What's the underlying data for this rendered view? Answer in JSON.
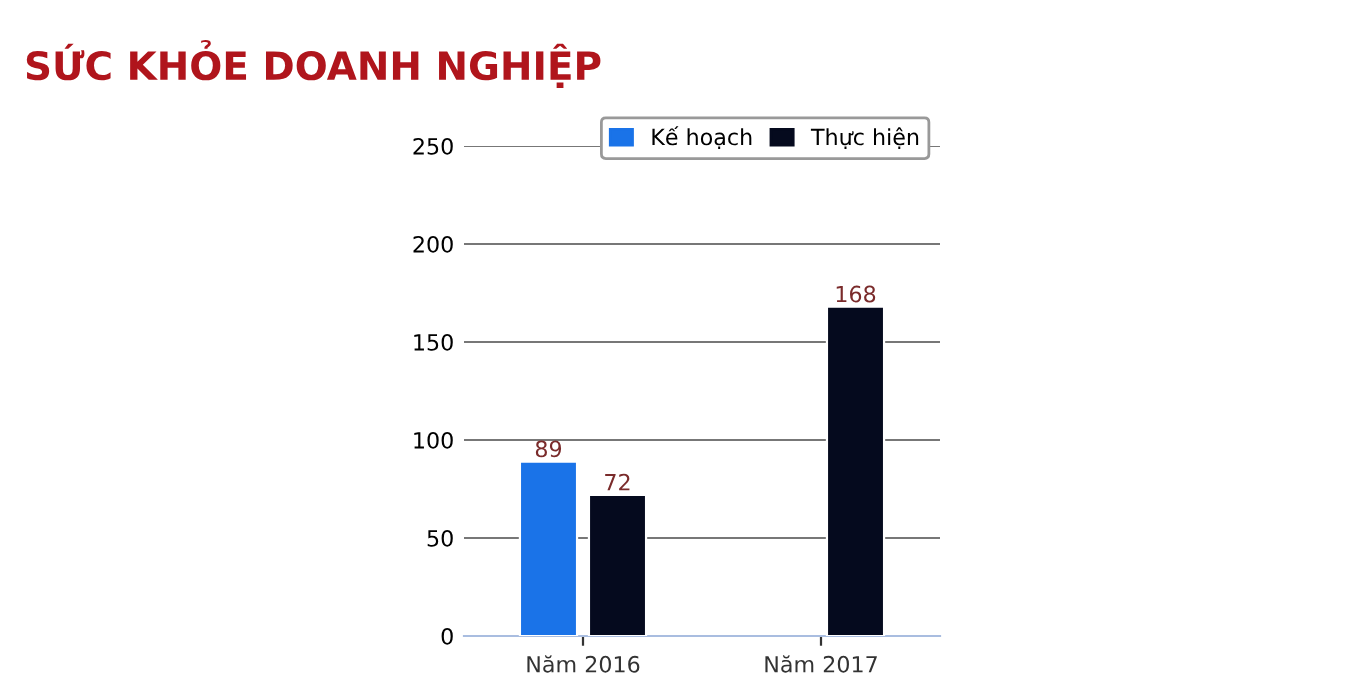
{
  "chart_data": {
    "type": "bar",
    "title": "SỨC KHỎE DOANH NGHIỆP",
    "categories": [
      "Năm 2016",
      "Năm 2017"
    ],
    "series": [
      {
        "name": "Kế hoạch",
        "color": "#1a73e8",
        "values": [
          89,
          null
        ]
      },
      {
        "name": "Thực hiện",
        "color": "#050a1e",
        "values": [
          72,
          168
        ]
      }
    ],
    "ylim": [
      0,
      250
    ],
    "yticks": [
      0,
      50,
      100,
      150,
      200,
      250
    ],
    "grid": "y",
    "legend": "top right",
    "data_labels": true
  }
}
